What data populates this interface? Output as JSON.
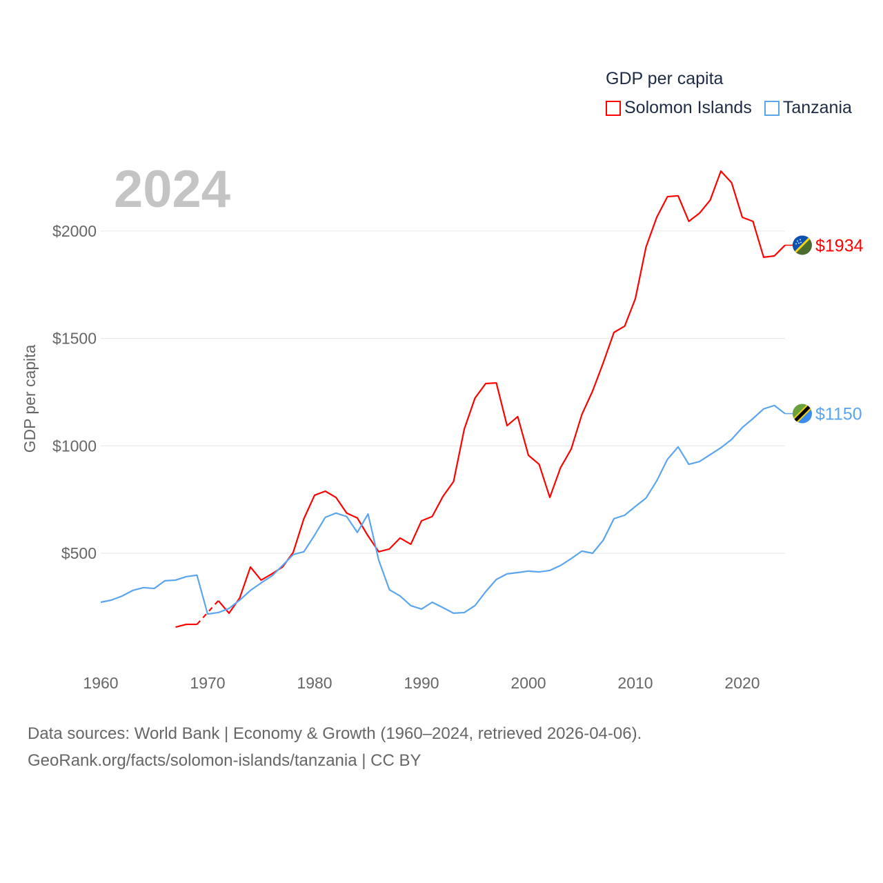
{
  "chart_data": {
    "type": "line",
    "title": "GDP per capita",
    "year_label": "2024",
    "ylabel": "GDP per capita",
    "xlabel": "",
    "xlim": [
      1960,
      2024
    ],
    "ylim": [
      0,
      2400
    ],
    "x_ticks": [
      1960,
      1970,
      1980,
      1990,
      2000,
      2010,
      2020
    ],
    "x_tick_labels": [
      "1960",
      "1970",
      "1980",
      "1990",
      "2000",
      "2010",
      "2020"
    ],
    "y_ticks": [
      500,
      1000,
      1500,
      2000
    ],
    "y_tick_labels": [
      "$500",
      "$1000",
      "$1500",
      "$2000"
    ],
    "grid": true,
    "legend_position": "top-right",
    "x": [
      1960,
      1961,
      1962,
      1963,
      1964,
      1965,
      1966,
      1967,
      1968,
      1969,
      1970,
      1971,
      1972,
      1973,
      1974,
      1975,
      1976,
      1977,
      1978,
      1979,
      1980,
      1981,
      1982,
      1983,
      1984,
      1985,
      1986,
      1987,
      1988,
      1989,
      1990,
      1991,
      1992,
      1993,
      1994,
      1995,
      1996,
      1997,
      1998,
      1999,
      2000,
      2001,
      2002,
      2003,
      2004,
      2005,
      2006,
      2007,
      2008,
      2009,
      2010,
      2011,
      2012,
      2013,
      2014,
      2015,
      2016,
      2017,
      2018,
      2019,
      2020,
      2021,
      2022,
      2023,
      2024
    ],
    "series": [
      {
        "name": "Solomon Islands",
        "color": "#ff0000",
        "end_label": "$1934",
        "flag": "solomon-islands-flag",
        "values": [
          null,
          null,
          null,
          null,
          null,
          null,
          null,
          156,
          169,
          169,
          null,
          279,
          221,
          292,
          436,
          375,
          404,
          436,
          504,
          661,
          770,
          789,
          760,
          687,
          664,
          581,
          507,
          520,
          571,
          542,
          651,
          671,
          764,
          834,
          1078,
          1222,
          1290,
          1293,
          1094,
          1136,
          956,
          914,
          760,
          898,
          985,
          1146,
          1255,
          1387,
          1528,
          1557,
          1685,
          1926,
          2064,
          2160,
          2164,
          2045,
          2083,
          2144,
          2279,
          2225,
          2064,
          2045,
          1878,
          1884,
          1934
        ]
      },
      {
        "name": "Tanzania",
        "color": "#5ba4ee",
        "end_label": "$1150",
        "flag": "tanzania-flag",
        "values": [
          272,
          282,
          301,
          327,
          340,
          336,
          372,
          375,
          391,
          398,
          217,
          224,
          243,
          282,
          327,
          362,
          394,
          443,
          494,
          507,
          584,
          667,
          687,
          671,
          597,
          683,
          468,
          330,
          301,
          256,
          240,
          272,
          247,
          221,
          224,
          256,
          321,
          378,
          404,
          410,
          417,
          413,
          420,
          443,
          475,
          510,
          500,
          561,
          661,
          677,
          718,
          757,
          837,
          937,
          995,
          914,
          927,
          959,
          991,
          1030,
          1085,
          1127,
          1172,
          1188,
          1150
        ]
      }
    ]
  },
  "footer": {
    "line1": "Data sources: World Bank | Economy & Growth (1960–2024, retrieved 2026-04-06).",
    "line2": "GeoRank.org/facts/solomon-islands/tanzania | CC BY"
  }
}
